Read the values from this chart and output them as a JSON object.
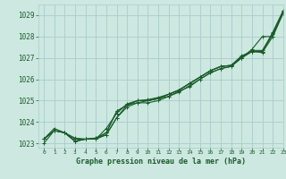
{
  "title": "Graphe pression niveau de la mer (hPa)",
  "bg_color": "#cce8e0",
  "grid_color": "#aacccc",
  "line_color": "#1a5c2a",
  "xlim": [
    -0.5,
    23
  ],
  "ylim": [
    1022.8,
    1029.5
  ],
  "xticks": [
    0,
    1,
    2,
    3,
    4,
    5,
    6,
    7,
    8,
    9,
    10,
    11,
    12,
    13,
    14,
    15,
    16,
    17,
    18,
    19,
    20,
    21,
    22,
    23
  ],
  "yticks": [
    1023,
    1024,
    1025,
    1026,
    1027,
    1028,
    1029
  ],
  "series": [
    [
      1023.2,
      1023.7,
      1023.5,
      1023.1,
      1023.2,
      1023.2,
      1023.4,
      1024.2,
      1024.8,
      1024.9,
      1024.9,
      1025.0,
      1025.2,
      1025.4,
      1025.7,
      1026.0,
      1026.3,
      1026.5,
      1026.6,
      1027.0,
      1027.4,
      1028.0,
      1028.0,
      1029.1
    ],
    [
      1023.2,
      1023.6,
      1023.5,
      1023.1,
      1023.2,
      1023.2,
      1023.5,
      1024.5,
      1024.8,
      1025.0,
      1025.0,
      1025.1,
      1025.3,
      1025.5,
      1025.8,
      1026.1,
      1026.4,
      1026.6,
      1026.65,
      1027.1,
      1027.3,
      1027.3,
      1028.2,
      1029.2
    ],
    [
      1023.2,
      1023.6,
      1023.5,
      1023.25,
      1023.2,
      1023.2,
      1023.7,
      1024.4,
      1024.85,
      1025.0,
      1025.05,
      1025.15,
      1025.3,
      1025.5,
      1025.8,
      1026.1,
      1026.4,
      1026.6,
      1026.65,
      1027.05,
      1027.35,
      1027.35,
      1028.15,
      1029.2
    ],
    [
      1023.2,
      1023.6,
      1023.5,
      1023.2,
      1023.2,
      1023.25,
      1023.5,
      1024.5,
      1024.8,
      1025.0,
      1025.0,
      1025.1,
      1025.3,
      1025.5,
      1025.8,
      1026.1,
      1026.4,
      1026.6,
      1026.65,
      1027.0,
      1027.3,
      1027.3,
      1028.1,
      1029.15
    ],
    [
      1023.0,
      1023.6,
      1023.5,
      1023.1,
      1023.2,
      1023.25,
      1023.4,
      1024.2,
      1024.7,
      1024.9,
      1025.0,
      1025.1,
      1025.2,
      1025.45,
      1025.65,
      1026.0,
      1026.3,
      1026.5,
      1026.6,
      1027.0,
      1027.3,
      1027.25,
      1028.0,
      1029.1
    ]
  ]
}
